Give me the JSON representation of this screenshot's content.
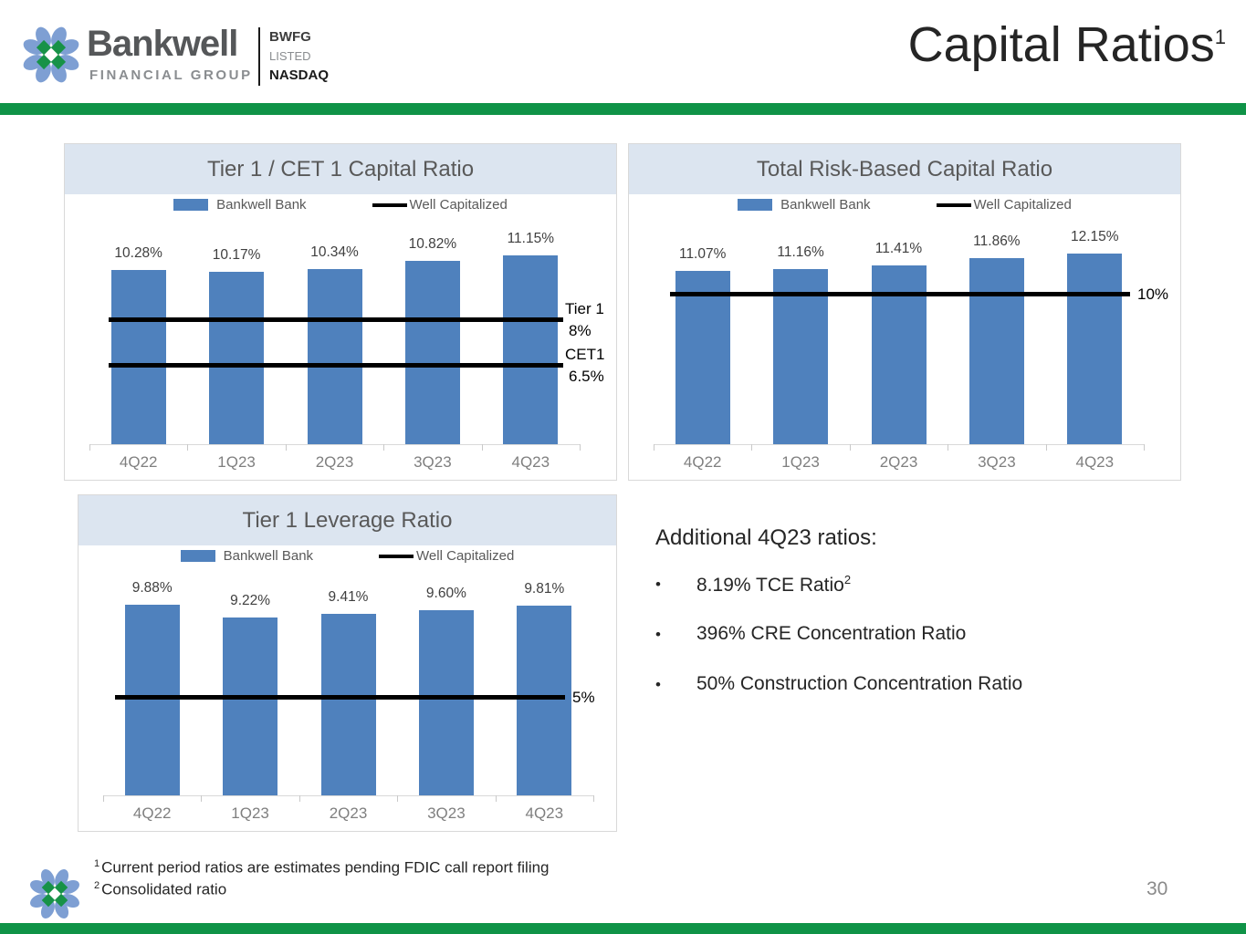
{
  "header": {
    "brand": {
      "name": "Bankwell",
      "subtitle": "FINANCIAL GROUP",
      "ticker": "BWFG",
      "listed": "LISTED",
      "exchange": "NASDAQ"
    },
    "title": "Capital Ratios",
    "title_superscript": "1"
  },
  "colors": {
    "accent_green": "#0f9347",
    "bar_blue": "#4f81bd",
    "band_blue": "#dce5f0"
  },
  "chart_data": [
    {
      "type": "bar",
      "title": "Tier 1 / CET 1 Capital Ratio",
      "categories": [
        "4Q22",
        "1Q23",
        "2Q23",
        "3Q23",
        "4Q23"
      ],
      "series": [
        {
          "name": "Bankwell Bank",
          "values": [
            10.28,
            10.17,
            10.34,
            10.82,
            11.15
          ],
          "labels": [
            "10.28%",
            "10.17%",
            "10.34%",
            "10.82%",
            "11.15%"
          ]
        }
      ],
      "reference_lines": [
        {
          "name": "Tier 1",
          "label": "8%",
          "value": 8
        },
        {
          "name": "CET1",
          "label": "6.5%",
          "value": 6.5
        }
      ],
      "legend": [
        {
          "type": "bar",
          "label": "Bankwell Bank"
        },
        {
          "type": "line",
          "label": "Well Capitalized"
        }
      ],
      "unit": "%",
      "ylim": [
        0,
        12.75
      ],
      "grid": false,
      "legend_position": "top"
    },
    {
      "type": "bar",
      "title": "Total Risk-Based Capital Ratio",
      "categories": [
        "4Q22",
        "1Q23",
        "2Q23",
        "3Q23",
        "4Q23"
      ],
      "series": [
        {
          "name": "Bankwell Bank",
          "values": [
            11.07,
            11.16,
            11.41,
            11.86,
            12.15
          ],
          "labels": [
            "11.07%",
            "11.16%",
            "11.41%",
            "11.86%",
            "12.15%"
          ]
        }
      ],
      "reference_lines": [
        {
          "name": "",
          "label": "10%",
          "value": 10
        }
      ],
      "legend": [
        {
          "type": "bar",
          "label": "Bankwell Bank"
        },
        {
          "type": "line",
          "label": "Well Capitalized"
        }
      ],
      "unit": "%",
      "ylim": [
        0,
        13.85
      ],
      "grid": false,
      "legend_position": "top"
    },
    {
      "type": "bar",
      "title": "Tier 1 Leverage Ratio",
      "categories": [
        "4Q22",
        "1Q23",
        "2Q23",
        "3Q23",
        "4Q23"
      ],
      "series": [
        {
          "name": "Bankwell Bank",
          "values": [
            9.88,
            9.22,
            9.41,
            9.6,
            9.81
          ],
          "labels": [
            "9.88%",
            "9.22%",
            "9.41%",
            "9.60%",
            "9.81%"
          ]
        }
      ],
      "reference_lines": [
        {
          "name": "",
          "label": "5%",
          "value": 5
        }
      ],
      "legend": [
        {
          "type": "bar",
          "label": "Bankwell Bank"
        },
        {
          "type": "line",
          "label": "Well Capitalized"
        }
      ],
      "unit": "%",
      "ylim": [
        0,
        10.2
      ],
      "grid": false,
      "legend_position": "top"
    }
  ],
  "additional": {
    "heading": "Additional 4Q23 ratios:",
    "items": [
      {
        "text": "8.19% TCE Ratio",
        "superscript": "2"
      },
      {
        "text": "396% CRE Concentration Ratio"
      },
      {
        "text": "50% Construction Concentration Ratio"
      }
    ]
  },
  "footnotes": [
    {
      "mark": "1",
      "text": "Current period ratios are estimates pending FDIC call report filing"
    },
    {
      "mark": "2",
      "text": "Consolidated ratio"
    }
  ],
  "page_number": "30"
}
